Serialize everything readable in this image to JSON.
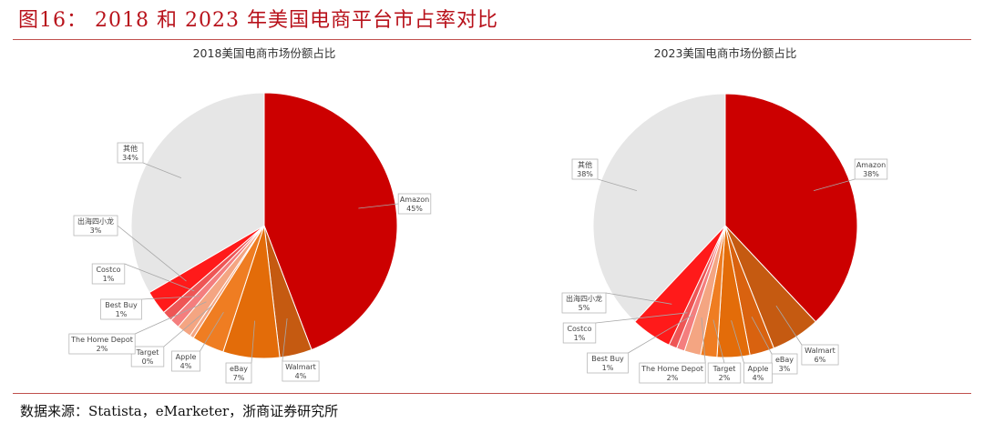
{
  "figure": {
    "title": "图16：  2018 和 2023 年美国电商平台市占率对比",
    "source": "数据来源：Statista，eMarketer，浙商证券研究所"
  },
  "chart_data": [
    {
      "type": "pie",
      "title": "2018美国电商市场份额占比",
      "slices": [
        {
          "label": "Amazon",
          "value": 45,
          "text": "45%",
          "color": "#cc0000"
        },
        {
          "label": "Walmart",
          "value": 4,
          "text": "4%",
          "color": "#c55a11"
        },
        {
          "label": "eBay",
          "value": 7,
          "text": "7%",
          "color": "#e36c09"
        },
        {
          "label": "Apple",
          "value": 4,
          "text": "4%",
          "color": "#ef7d22"
        },
        {
          "label": "Target",
          "value": 0.5,
          "text": "0%",
          "color": "#f4a582"
        },
        {
          "label": "The Home Depot",
          "value": 1.8,
          "text": "2%",
          "color": "#f4a582"
        },
        {
          "label": "Best Buy",
          "value": 1.2,
          "text": "1%",
          "color": "#f47e7e"
        },
        {
          "label": "Costco",
          "value": 1.3,
          "text": "1%",
          "color": "#ee5555"
        },
        {
          "label": "出海四小龙",
          "value": 3,
          "text": "3%",
          "color": "#ff1a1a"
        },
        {
          "label": "其他",
          "value": 34,
          "text": "34%",
          "color": "#e6e6e6"
        }
      ]
    },
    {
      "type": "pie",
      "title": "2023美国电商市场份额占比",
      "slices": [
        {
          "label": "Amazon",
          "value": 38,
          "text": "38%",
          "color": "#cc0000"
        },
        {
          "label": "Walmart",
          "value": 6,
          "text": "6%",
          "color": "#c55a11"
        },
        {
          "label": "eBay",
          "value": 3,
          "text": "3%",
          "color": "#d9620f"
        },
        {
          "label": "Apple",
          "value": 4,
          "text": "4%",
          "color": "#e36c09"
        },
        {
          "label": "Target",
          "value": 2,
          "text": "2%",
          "color": "#ef7d22"
        },
        {
          "label": "The Home Depot",
          "value": 2,
          "text": "2%",
          "color": "#f4a582"
        },
        {
          "label": "Best Buy",
          "value": 1,
          "text": "1%",
          "color": "#f47e7e"
        },
        {
          "label": "Costco",
          "value": 1,
          "text": "1%",
          "color": "#ee5555"
        },
        {
          "label": "出海四小龙",
          "value": 5,
          "text": "5%",
          "color": "#ff1a1a"
        },
        {
          "label": "其他",
          "value": 38,
          "text": "38%",
          "color": "#e6e6e6"
        }
      ]
    }
  ]
}
